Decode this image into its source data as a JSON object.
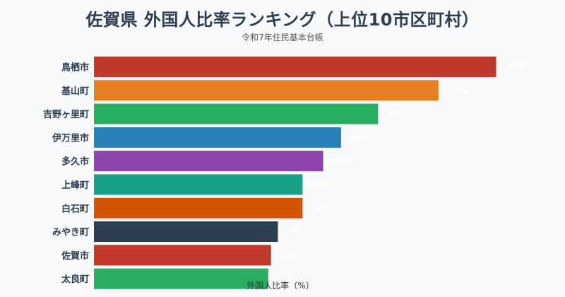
{
  "header": {
    "title": "佐賀県 外国人比率ランキング（上位10市区町村）",
    "subtitle": "令和7年住民基本台帳"
  },
  "chart_data": {
    "type": "bar",
    "orientation": "horizontal",
    "title": "佐賀県 外国人比率ランキング（上位10市区町村）",
    "subtitle": "令和7年住民基本台帳",
    "xlabel": "外国人比率（%）",
    "ylabel": "",
    "categories": [
      "鳥栖市",
      "基山町",
      "吉野ヶ里町",
      "伊万里市",
      "多久市",
      "上峰町",
      "白石町",
      "みやき町",
      "佐賀市",
      "太良町"
    ],
    "values": [
      2.93,
      2.51,
      2.07,
      1.8,
      1.67,
      1.52,
      1.52,
      1.34,
      1.29,
      1.27
    ],
    "value_labels": [
      "2.93%",
      "2.51%",
      "2.07%",
      "1.8%",
      "1.67%",
      "1.52%",
      "1.52%",
      "1.34%",
      "1.29%",
      "1.27%"
    ],
    "colors": [
      "#c0392b",
      "#e67e22",
      "#27ae60",
      "#2980b9",
      "#8e44ad",
      "#16a085",
      "#d35400",
      "#2c3e50",
      "#c0392b",
      "#27ae60"
    ],
    "xlim": [
      0,
      3.2
    ],
    "grid": false,
    "legend": "none"
  }
}
